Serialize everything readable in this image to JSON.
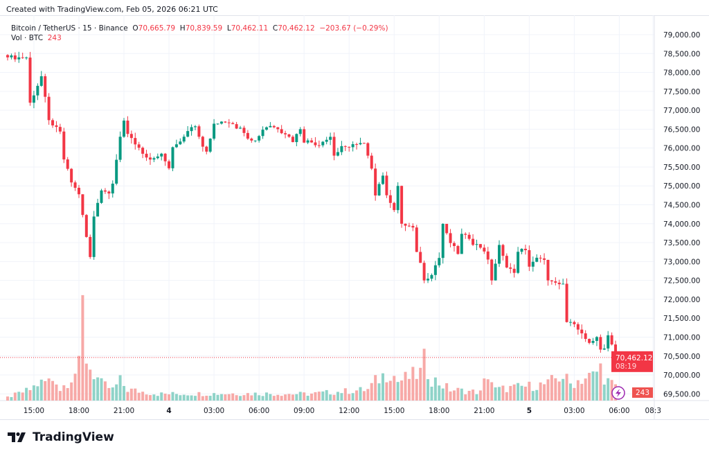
{
  "header": {
    "created": "Created with TradingView.com, Feb 05, 2026 06:21 UTC"
  },
  "legend": {
    "symbol": "Bitcoin / TetherUS · 15 · Binance",
    "o_label": "O",
    "o": "70,665.79",
    "h_label": "H",
    "h": "70,839.59",
    "l_label": "L",
    "l": "70,462.11",
    "c_label": "C",
    "c": "70,462.12",
    "change": "−203.67 (−0.29%)",
    "vol_label": "Vol · BTC",
    "vol": "243"
  },
  "price_badge": {
    "price": "70,462.12",
    "countdown": "08:19"
  },
  "vol_badge": "243",
  "logo": "TradingView",
  "colors": {
    "up": "#089981",
    "down": "#f23645",
    "vol_up": "#8fd3c8",
    "vol_down": "#f7a9a7",
    "grid": "#f0f3fa"
  },
  "chart_data": {
    "type": "candlestick",
    "title": "Bitcoin / TetherUS · 15 · Binance",
    "ylim": [
      69500,
      79300
    ],
    "yticks": [
      "79,000.00",
      "78,500.00",
      "78,000.00",
      "77,500.00",
      "77,000.00",
      "76,500.00",
      "76,000.00",
      "75,500.00",
      "75,000.00",
      "74,500.00",
      "74,000.00",
      "73,500.00",
      "73,000.00",
      "72,500.00",
      "72,000.00",
      "71,500.00",
      "71,000.00",
      "70,500.00",
      "70,000.00",
      "69,500.00"
    ],
    "ytick_values": [
      79000,
      78500,
      78000,
      77500,
      77000,
      76500,
      76000,
      75500,
      75000,
      74500,
      74000,
      73500,
      73000,
      72500,
      72000,
      71500,
      71000,
      70500,
      70000,
      69500
    ],
    "xticks": [
      {
        "label": "15:00",
        "bar": 7
      },
      {
        "label": "18:00",
        "bar": 19
      },
      {
        "label": "21:00",
        "bar": 31
      },
      {
        "label": "4",
        "bar": 43
      },
      {
        "label": "03:00",
        "bar": 55
      },
      {
        "label": "06:00",
        "bar": 67
      },
      {
        "label": "09:00",
        "bar": 79
      },
      {
        "label": "12:00",
        "bar": 91
      },
      {
        "label": "15:00",
        "bar": 103
      },
      {
        "label": "18:00",
        "bar": 115
      },
      {
        "label": "21:00",
        "bar": 127
      },
      {
        "label": "5",
        "bar": 139
      },
      {
        "label": "03:00",
        "bar": 151
      },
      {
        "label": "06:00",
        "bar": 163
      },
      {
        "label": "08:3",
        "bar": 172
      }
    ],
    "close_keypoints": [
      [
        0,
        78400
      ],
      [
        5,
        78400
      ],
      [
        6,
        77200
      ],
      [
        9,
        77900
      ],
      [
        11,
        76700
      ],
      [
        14,
        76400
      ],
      [
        15,
        75700
      ],
      [
        17,
        75100
      ],
      [
        19,
        74800
      ],
      [
        20,
        74200
      ],
      [
        22,
        73100
      ],
      [
        23,
        74200
      ],
      [
        25,
        74900
      ],
      [
        27,
        74800
      ],
      [
        28,
        75100
      ],
      [
        29,
        75700
      ],
      [
        30,
        76300
      ],
      [
        31,
        76700
      ],
      [
        32,
        76400
      ],
      [
        35,
        76000
      ],
      [
        37,
        75700
      ],
      [
        38,
        75700
      ],
      [
        41,
        75800
      ],
      [
        43,
        75500
      ],
      [
        44,
        76000
      ],
      [
        47,
        76300
      ],
      [
        49,
        76600
      ],
      [
        50,
        76600
      ],
      [
        52,
        76000
      ],
      [
        53,
        75900
      ],
      [
        55,
        76600
      ],
      [
        57,
        76700
      ],
      [
        59,
        76700
      ],
      [
        62,
        76500
      ],
      [
        64,
        76300
      ],
      [
        66,
        76200
      ],
      [
        68,
        76500
      ],
      [
        70,
        76600
      ],
      [
        72,
        76500
      ],
      [
        74,
        76400
      ],
      [
        76,
        76200
      ],
      [
        78,
        76500
      ],
      [
        79,
        76200
      ],
      [
        83,
        76100
      ],
      [
        86,
        76300
      ],
      [
        87,
        75800
      ],
      [
        89,
        76000
      ],
      [
        92,
        76100
      ],
      [
        95,
        76100
      ],
      [
        97,
        75500
      ],
      [
        98,
        74800
      ],
      [
        100,
        75300
      ],
      [
        101,
        74700
      ],
      [
        103,
        74400
      ],
      [
        104,
        75000
      ],
      [
        105,
        74000
      ],
      [
        108,
        73900
      ],
      [
        109,
        73200
      ],
      [
        110,
        73000
      ],
      [
        111,
        72500
      ],
      [
        113,
        72700
      ],
      [
        115,
        73100
      ],
      [
        116,
        74000
      ],
      [
        118,
        73500
      ],
      [
        120,
        73200
      ],
      [
        121,
        73700
      ],
      [
        123,
        73600
      ],
      [
        124,
        73500
      ],
      [
        127,
        73300
      ],
      [
        128,
        73000
      ],
      [
        129,
        72500
      ],
      [
        131,
        73400
      ],
      [
        133,
        72900
      ],
      [
        135,
        72700
      ],
      [
        136,
        73300
      ],
      [
        138,
        73300
      ],
      [
        139,
        72900
      ],
      [
        141,
        73100
      ],
      [
        143,
        73000
      ],
      [
        144,
        72500
      ],
      [
        146,
        72400
      ],
      [
        148,
        72400
      ],
      [
        149,
        71400
      ],
      [
        151,
        71400
      ],
      [
        153,
        71100
      ],
      [
        155,
        70800
      ],
      [
        157,
        71000
      ],
      [
        158,
        70700
      ],
      [
        159,
        70700
      ],
      [
        160,
        71000
      ],
      [
        161,
        70800
      ],
      [
        162,
        70462.12
      ]
    ],
    "volume_keypoints": [
      [
        0,
        60
      ],
      [
        6,
        200
      ],
      [
        8,
        300
      ],
      [
        13,
        400
      ],
      [
        14,
        200
      ],
      [
        19,
        600
      ],
      [
        20,
        1650
      ],
      [
        21,
        800
      ],
      [
        22,
        600
      ],
      [
        25,
        300
      ],
      [
        28,
        200
      ],
      [
        30,
        350
      ],
      [
        32,
        200
      ],
      [
        40,
        120
      ],
      [
        60,
        130
      ],
      [
        80,
        120
      ],
      [
        96,
        200
      ],
      [
        98,
        350
      ],
      [
        100,
        450
      ],
      [
        102,
        550
      ],
      [
        104,
        350
      ],
      [
        110,
        500
      ],
      [
        111,
        700
      ],
      [
        113,
        400
      ],
      [
        118,
        200
      ],
      [
        126,
        150
      ],
      [
        128,
        500
      ],
      [
        130,
        200
      ],
      [
        144,
        300
      ],
      [
        146,
        400
      ],
      [
        148,
        450
      ],
      [
        150,
        300
      ],
      [
        153,
        400
      ],
      [
        156,
        450
      ],
      [
        158,
        600
      ],
      [
        159,
        450
      ],
      [
        160,
        350
      ],
      [
        162,
        243
      ]
    ],
    "last_price": 70462.12
  }
}
